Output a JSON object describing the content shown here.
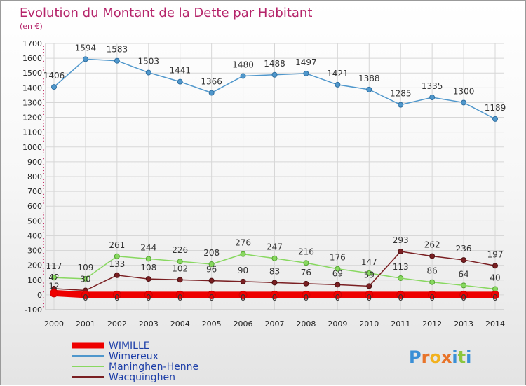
{
  "chart_data": {
    "type": "line",
    "title": "Evolution du Montant de la Dette par Habitant",
    "subtitle": "(en €)",
    "xlabel": "",
    "ylabel": "",
    "x": [
      "2000",
      "2001",
      "2002",
      "2003",
      "2004",
      "2005",
      "2006",
      "2007",
      "2008",
      "2009",
      "2010",
      "2011",
      "2012",
      "2013",
      "2014"
    ],
    "ylim": [
      -100,
      1700
    ],
    "yticks": [
      -100,
      0,
      100,
      200,
      300,
      400,
      500,
      600,
      700,
      800,
      900,
      1000,
      1100,
      1200,
      1300,
      1400,
      1500,
      1600,
      1700
    ],
    "grid": true,
    "legend_position": "bottom-left",
    "series": [
      {
        "name": "WIMILLE",
        "color": "#ee0000",
        "values": [
          12,
          0,
          0,
          0,
          0,
          0,
          0,
          0,
          0,
          0,
          0,
          0,
          0,
          0,
          0
        ],
        "labels": [
          "12",
          "0",
          "0",
          "0",
          "0",
          "0",
          "0",
          "0",
          "0",
          "0",
          "0",
          "0",
          "0",
          "0",
          "0"
        ]
      },
      {
        "name": "Wimereux",
        "color": "#4f97cc",
        "values": [
          1406,
          1594,
          1583,
          1503,
          1441,
          1366,
          1480,
          1488,
          1497,
          1421,
          1388,
          1285,
          1335,
          1300,
          1189
        ],
        "labels": [
          "1406",
          "1594",
          "1583",
          "1503",
          "1441",
          "1366",
          "1480",
          "1488",
          "1497",
          "1421",
          "1388",
          "1285",
          "1335",
          "1300",
          "1189"
        ]
      },
      {
        "name": "Maninghen-Henne",
        "color": "#88d860",
        "values": [
          117,
          109,
          261,
          244,
          226,
          208,
          276,
          247,
          216,
          176,
          147,
          113,
          86,
          64,
          40
        ],
        "labels": [
          "117",
          "109",
          "261",
          "244",
          "226",
          "208",
          "276",
          "247",
          "216",
          "176",
          "147",
          "113",
          "86",
          "64",
          "40"
        ]
      },
      {
        "name": "Wacquinghen",
        "color": "#7a1f22",
        "values": [
          42,
          30,
          133,
          108,
          102,
          96,
          90,
          83,
          76,
          69,
          59,
          293,
          262,
          236,
          197
        ],
        "labels": [
          "42",
          "30",
          "133",
          "108",
          "102",
          "96",
          "90",
          "83",
          "76",
          "69",
          "59",
          "293",
          "262",
          "236",
          "197"
        ]
      }
    ]
  },
  "logo": {
    "text": "Proxiti"
  }
}
